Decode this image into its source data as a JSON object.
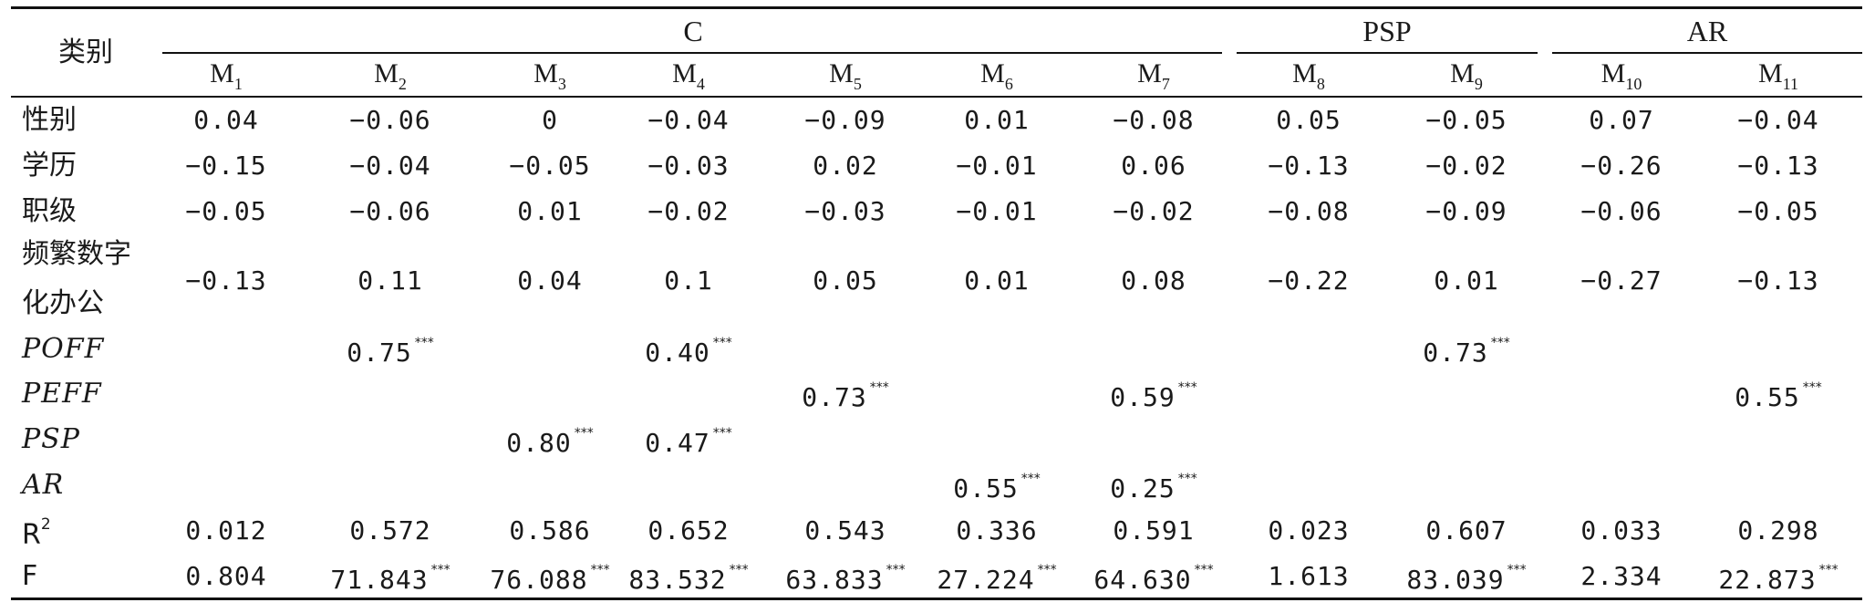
{
  "table": {
    "corner": "类别",
    "groups": [
      {
        "label": "C"
      },
      {
        "label": "PSP"
      },
      {
        "label": "AR"
      }
    ],
    "models": [
      {
        "base": "M",
        "sub": "1"
      },
      {
        "base": "M",
        "sub": "2"
      },
      {
        "base": "M",
        "sub": "3"
      },
      {
        "base": "M",
        "sub": "4"
      },
      {
        "base": "M",
        "sub": "5"
      },
      {
        "base": "M",
        "sub": "6"
      },
      {
        "base": "M",
        "sub": "7"
      },
      {
        "base": "M",
        "sub": "8"
      },
      {
        "base": "M",
        "sub": "9"
      },
      {
        "base": "M",
        "sub": "10"
      },
      {
        "base": "M",
        "sub": "11"
      }
    ],
    "rows": [
      {
        "label": "性别",
        "cells": [
          {
            "v": "0.04"
          },
          {
            "v": "−0.06"
          },
          {
            "v": "0"
          },
          {
            "v": "−0.04"
          },
          {
            "v": "−0.09"
          },
          {
            "v": "0.01"
          },
          {
            "v": "−0.08"
          },
          {
            "v": "0.05"
          },
          {
            "v": "−0.05"
          },
          {
            "v": "0.07"
          },
          {
            "v": "−0.04"
          }
        ]
      },
      {
        "label": "学历",
        "cells": [
          {
            "v": "−0.15"
          },
          {
            "v": "−0.04"
          },
          {
            "v": "−0.05"
          },
          {
            "v": "−0.03"
          },
          {
            "v": "0.02"
          },
          {
            "v": "−0.01"
          },
          {
            "v": "0.06"
          },
          {
            "v": "−0.13"
          },
          {
            "v": "−0.02"
          },
          {
            "v": "−0.26"
          },
          {
            "v": "−0.13"
          }
        ]
      },
      {
        "label": "职级",
        "cells": [
          {
            "v": "−0.05"
          },
          {
            "v": "−0.06"
          },
          {
            "v": "0.01"
          },
          {
            "v": "−0.02"
          },
          {
            "v": "−0.03"
          },
          {
            "v": "−0.01"
          },
          {
            "v": "−0.02"
          },
          {
            "v": "−0.08"
          },
          {
            "v": "−0.09"
          },
          {
            "v": "−0.06"
          },
          {
            "v": "−0.05"
          }
        ]
      },
      {
        "label": "频繁数字",
        "label2": "化办公",
        "cells": [
          {
            "v": "−0.13"
          },
          {
            "v": "0.11"
          },
          {
            "v": "0.04"
          },
          {
            "v": "0.1"
          },
          {
            "v": "0.05"
          },
          {
            "v": "0.01"
          },
          {
            "v": "0.08"
          },
          {
            "v": "−0.22"
          },
          {
            "v": "0.01"
          },
          {
            "v": "−0.27"
          },
          {
            "v": "−0.13"
          }
        ]
      },
      {
        "label": "POFF",
        "italic": true,
        "cells": [
          {
            "v": ""
          },
          {
            "v": "0.75",
            "s": "***"
          },
          {
            "v": ""
          },
          {
            "v": "0.40",
            "s": "***"
          },
          {
            "v": ""
          },
          {
            "v": ""
          },
          {
            "v": ""
          },
          {
            "v": ""
          },
          {
            "v": "0.73",
            "s": "***"
          },
          {
            "v": ""
          },
          {
            "v": ""
          }
        ]
      },
      {
        "label": "PEFF",
        "italic": true,
        "cells": [
          {
            "v": ""
          },
          {
            "v": ""
          },
          {
            "v": ""
          },
          {
            "v": ""
          },
          {
            "v": "0.73",
            "s": "***"
          },
          {
            "v": ""
          },
          {
            "v": "0.59",
            "s": "***"
          },
          {
            "v": ""
          },
          {
            "v": ""
          },
          {
            "v": ""
          },
          {
            "v": "0.55",
            "s": "***"
          }
        ]
      },
      {
        "label": "PSP",
        "italic": true,
        "cells": [
          {
            "v": ""
          },
          {
            "v": ""
          },
          {
            "v": "0.80",
            "s": "***"
          },
          {
            "v": "0.47",
            "s": "***"
          },
          {
            "v": ""
          },
          {
            "v": ""
          },
          {
            "v": ""
          },
          {
            "v": ""
          },
          {
            "v": ""
          },
          {
            "v": ""
          },
          {
            "v": ""
          }
        ]
      },
      {
        "label": "AR",
        "italic": true,
        "cells": [
          {
            "v": ""
          },
          {
            "v": ""
          },
          {
            "v": ""
          },
          {
            "v": ""
          },
          {
            "v": ""
          },
          {
            "v": "0.55",
            "s": "***"
          },
          {
            "v": "0.25",
            "s": "***"
          },
          {
            "v": ""
          },
          {
            "v": ""
          },
          {
            "v": ""
          },
          {
            "v": ""
          }
        ]
      },
      {
        "label": "R",
        "labelSup": "2",
        "cells": [
          {
            "v": "0.012"
          },
          {
            "v": "0.572"
          },
          {
            "v": "0.586"
          },
          {
            "v": "0.652"
          },
          {
            "v": "0.543"
          },
          {
            "v": "0.336"
          },
          {
            "v": "0.591"
          },
          {
            "v": "0.023"
          },
          {
            "v": "0.607"
          },
          {
            "v": "0.033"
          },
          {
            "v": "0.298"
          }
        ]
      },
      {
        "label": "F",
        "cells": [
          {
            "v": "0.804"
          },
          {
            "v": "71.843",
            "s": "***"
          },
          {
            "v": "76.088",
            "s": "***"
          },
          {
            "v": "83.532",
            "s": "***"
          },
          {
            "v": "63.833",
            "s": "***"
          },
          {
            "v": "27.224",
            "s": "***"
          },
          {
            "v": "64.630",
            "s": "***"
          },
          {
            "v": "1.613"
          },
          {
            "v": "83.039",
            "s": "***"
          },
          {
            "v": "2.334"
          },
          {
            "v": "22.873",
            "s": "***"
          }
        ]
      }
    ]
  }
}
